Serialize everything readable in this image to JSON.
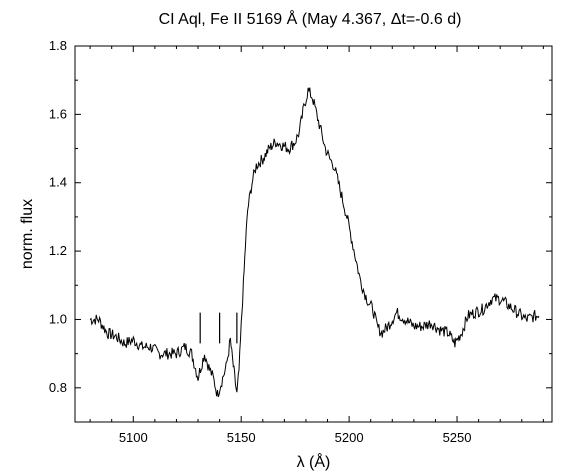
{
  "chart_data": {
    "type": "line",
    "title": "CI Aql, Fe II 5169 Å (May 4.367, Δt=-0.6 d)",
    "xlabel": "λ (Å)",
    "ylabel": "norm. flux",
    "xlim": [
      5073,
      5294
    ],
    "ylim": [
      0.7,
      1.8
    ],
    "xticks": [
      5100,
      5150,
      5200,
      5250
    ],
    "yticks": [
      0.8,
      1.0,
      1.2,
      1.4,
      1.6,
      1.8
    ],
    "grid": false,
    "markers": [
      5131,
      5140,
      5148
    ],
    "marker_range": [
      0.93,
      1.02
    ],
    "series": [
      {
        "x": [
          5080,
          5084,
          5088,
          5092,
          5096,
          5100,
          5104,
          5108,
          5112,
          5116,
          5120,
          5124,
          5127,
          5130,
          5133,
          5135,
          5137,
          5139,
          5141,
          5143,
          5145,
          5146,
          5147,
          5148,
          5149,
          5150,
          5151,
          5152,
          5153,
          5155,
          5157,
          5160,
          5163,
          5166,
          5169,
          5172,
          5175,
          5177,
          5179,
          5181,
          5183,
          5185,
          5187,
          5189,
          5191,
          5193,
          5195,
          5197,
          5199,
          5201,
          5203,
          5205,
          5207,
          5209,
          5211,
          5213,
          5215,
          5218,
          5222,
          5226,
          5230,
          5234,
          5238,
          5242,
          5246,
          5249,
          5252,
          5255,
          5258,
          5262,
          5266,
          5270,
          5274,
          5278,
          5282,
          5286,
          5288
        ],
        "y": [
          1.0,
          1.0,
          0.96,
          0.95,
          0.93,
          0.94,
          0.92,
          0.92,
          0.9,
          0.9,
          0.9,
          0.92,
          0.9,
          0.83,
          0.9,
          0.86,
          0.83,
          0.78,
          0.82,
          0.86,
          0.94,
          0.88,
          0.83,
          0.78,
          0.85,
          0.98,
          1.1,
          1.22,
          1.32,
          1.4,
          1.45,
          1.47,
          1.5,
          1.52,
          1.51,
          1.5,
          1.52,
          1.55,
          1.62,
          1.67,
          1.65,
          1.6,
          1.55,
          1.5,
          1.47,
          1.45,
          1.4,
          1.35,
          1.3,
          1.24,
          1.18,
          1.12,
          1.08,
          1.05,
          1.03,
          0.98,
          0.96,
          0.98,
          1.02,
          1.0,
          0.98,
          0.98,
          0.99,
          0.97,
          0.96,
          0.93,
          0.96,
          1.01,
          1.02,
          1.03,
          1.06,
          1.06,
          1.04,
          1.02,
          1.0,
          1.01,
          1.01
        ]
      }
    ]
  }
}
